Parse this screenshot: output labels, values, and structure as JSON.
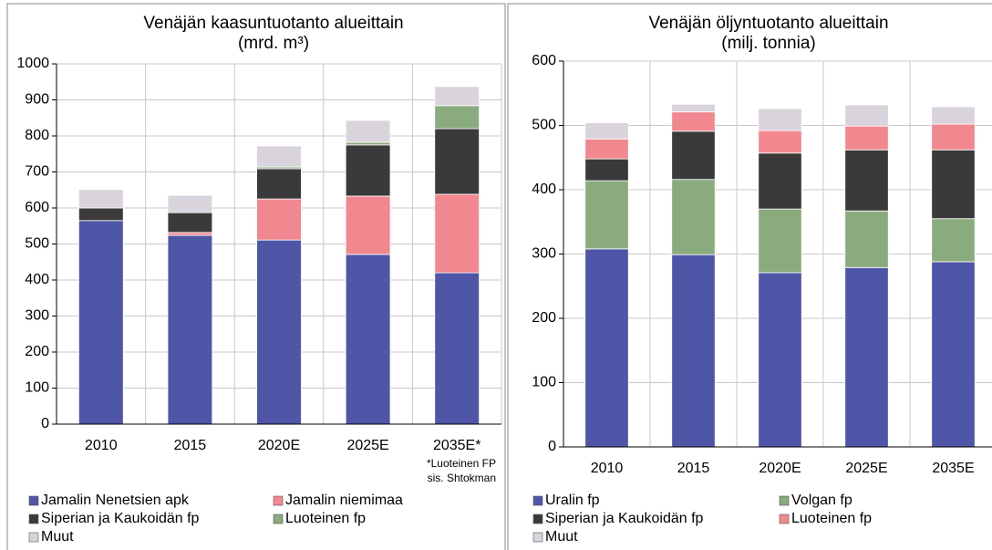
{
  "chart_data": [
    {
      "type": "stacked_bar",
      "title": "Venäjän kaasuntuotanto alueittain",
      "subtitle": "(mrd. m³)",
      "categories": [
        "2010",
        "2015",
        "2020E",
        "2025E",
        "2035E*"
      ],
      "series": [
        {
          "name": "Jamalin Nenetsien apk",
          "color": "#4f55a7",
          "values": [
            565,
            524,
            511,
            471,
            420
          ]
        },
        {
          "name": "Jamalin niemimaa",
          "color": "#f2888f",
          "values": [
            0,
            8,
            114,
            162,
            218
          ]
        },
        {
          "name": "Siperian ja Kaukoidän fp",
          "color": "#3a3a3a",
          "values": [
            35,
            55,
            84,
            142,
            182
          ]
        },
        {
          "name": "Luoteinen fp",
          "color": "#8aab7e",
          "values": [
            0,
            0,
            5,
            7,
            64
          ]
        },
        {
          "name": "Muut",
          "color": "#d9d3dc",
          "values": [
            51,
            48,
            58,
            61,
            53
          ]
        }
      ],
      "annotation": [
        "*Luoteinen FP",
        "sis. Shtokman"
      ],
      "ylim": [
        0,
        1000
      ],
      "yticks": [
        0,
        100,
        200,
        300,
        400,
        500,
        600,
        700,
        800,
        900,
        1000
      ],
      "grid": true
    },
    {
      "type": "stacked_bar",
      "title": "Venäjän öljyntuotanto alueittain",
      "subtitle": "(milj. tonnia)",
      "categories": [
        "2010",
        "2015",
        "2020E",
        "2025E",
        "2035E"
      ],
      "series": [
        {
          "name": "Uralin fp",
          "color": "#4f55a7",
          "values": [
            308,
            299,
            271,
            279,
            288
          ]
        },
        {
          "name": "Volgan fp",
          "color": "#8aab7e",
          "values": [
            106,
            117,
            99,
            88,
            67
          ]
        },
        {
          "name": "Siperian ja Kaukoidän fp",
          "color": "#3a3a3a",
          "values": [
            34,
            75,
            87,
            95,
            107
          ]
        },
        {
          "name": "Luoteinen fp",
          "color": "#f2888f",
          "values": [
            31,
            30,
            35,
            37,
            40
          ]
        },
        {
          "name": "Muut",
          "color": "#d9d3dc",
          "values": [
            25,
            12,
            34,
            33,
            27
          ]
        }
      ],
      "ylim": [
        0,
        600
      ],
      "yticks": [
        0,
        100,
        200,
        300,
        400,
        500,
        600
      ],
      "grid": true
    }
  ]
}
